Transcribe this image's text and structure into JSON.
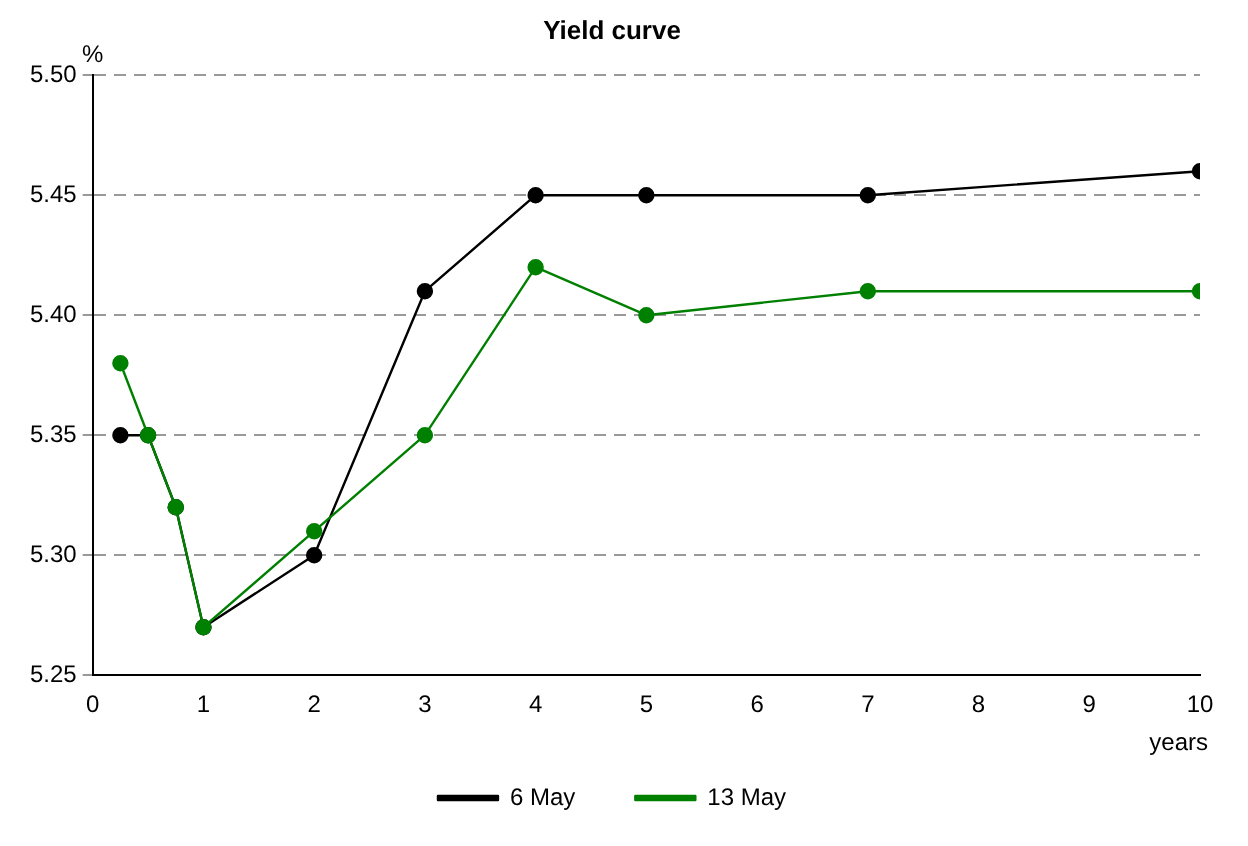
{
  "chart_data": {
    "type": "line",
    "title": "Yield curve",
    "xlabel": "years",
    "ylabel": "%",
    "x": [
      0.25,
      0.5,
      0.75,
      1,
      2,
      3,
      4,
      5,
      7,
      10
    ],
    "series": [
      {
        "name": "6 May",
        "color": "#000000",
        "values": [
          5.35,
          5.35,
          5.32,
          5.27,
          5.3,
          5.41,
          5.45,
          5.45,
          5.45,
          5.46
        ]
      },
      {
        "name": "13 May",
        "color": "#008000",
        "values": [
          5.38,
          5.35,
          5.32,
          5.27,
          5.31,
          5.35,
          5.42,
          5.4,
          5.41,
          5.41
        ]
      }
    ],
    "xlim": [
      0,
      10
    ],
    "xticks": [
      0,
      1,
      2,
      3,
      4,
      5,
      6,
      7,
      8,
      9,
      10
    ],
    "ylim": [
      5.25,
      5.5
    ],
    "yticks": [
      {
        "value": 5.25,
        "label": "5.25"
      },
      {
        "value": 5.3,
        "label": "5.30"
      },
      {
        "value": 5.35,
        "label": "5.35"
      },
      {
        "value": 5.4,
        "label": "5.40"
      },
      {
        "value": 5.45,
        "label": "5.45"
      },
      {
        "value": 5.5,
        "label": "5.50"
      }
    ],
    "grid": "y",
    "legend": "bottom",
    "marker": "circle",
    "line_style": "solid"
  }
}
